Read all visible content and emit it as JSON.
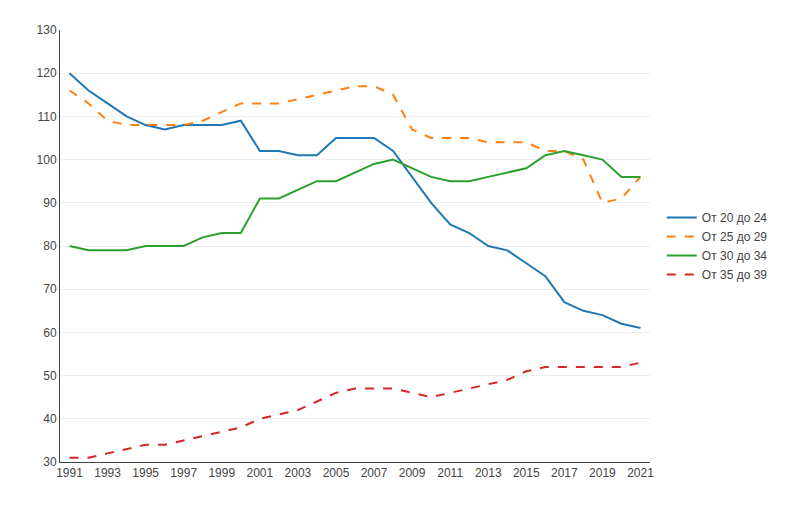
{
  "chart_data": {
    "type": "line",
    "x": [
      1991,
      1992,
      1993,
      1994,
      1995,
      1996,
      1997,
      1998,
      1999,
      2000,
      2001,
      2002,
      2003,
      2004,
      2005,
      2006,
      2007,
      2008,
      2009,
      2010,
      2011,
      2012,
      2013,
      2014,
      2015,
      2016,
      2017,
      2018,
      2019,
      2020,
      2021
    ],
    "series": [
      {
        "name": "От 20 до 24",
        "line_style": "solid",
        "values": [
          120,
          116,
          113,
          110,
          108,
          107,
          108,
          108,
          108,
          109,
          102,
          102,
          101,
          101,
          105,
          105,
          105,
          102,
          96,
          90,
          85,
          83,
          80,
          79,
          76,
          73,
          67,
          65,
          64,
          62,
          61
        ]
      },
      {
        "name": "От 25 до 29",
        "line_style": "dashed",
        "values": [
          116,
          113,
          109,
          108,
          108,
          108,
          108,
          109,
          111,
          113,
          113,
          113,
          114,
          115,
          116,
          117,
          117,
          115,
          107,
          105,
          105,
          105,
          104,
          104,
          104,
          102,
          102,
          100,
          90,
          91,
          96
        ]
      },
      {
        "name": "От 30 до 34",
        "line_style": "solid",
        "values": [
          80,
          79,
          79,
          79,
          80,
          80,
          80,
          82,
          83,
          83,
          91,
          91,
          93,
          95,
          95,
          97,
          99,
          100,
          98,
          96,
          95,
          95,
          96,
          97,
          98,
          101,
          102,
          101,
          100,
          96,
          96
        ]
      },
      {
        "name": "От 35 до 39",
        "line_style": "dashed",
        "values": [
          31,
          31,
          32,
          33,
          34,
          34,
          35,
          36,
          37,
          38,
          40,
          41,
          42,
          44,
          46,
          47,
          47,
          47,
          46,
          45,
          46,
          47,
          48,
          49,
          51,
          52,
          52,
          52,
          52,
          52,
          53
        ]
      }
    ],
    "xlim": [
      1990.5,
      2021.5
    ],
    "xticks": [
      1991,
      1993,
      1995,
      1997,
      1999,
      2001,
      2003,
      2005,
      2007,
      2009,
      2011,
      2013,
      2015,
      2017,
      2019,
      2021
    ],
    "ylim": [
      30,
      130
    ],
    "yticks": [
      30,
      40,
      50,
      60,
      70,
      80,
      90,
      100,
      110,
      120,
      130
    ],
    "grid": "y",
    "legend": "right"
  }
}
